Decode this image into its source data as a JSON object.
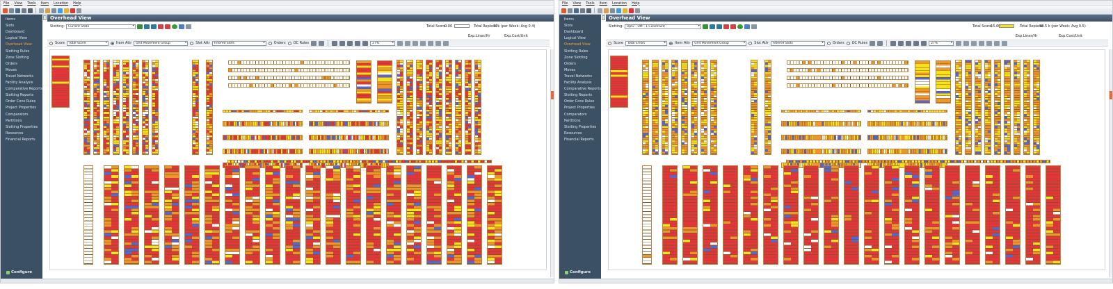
{
  "colors": {
    "sidebar_bg": "#3c5063",
    "header_bg": "#4a6076",
    "active_item": "#f2a23a",
    "slot_red": "#e8333a",
    "slot_orange": "#f0952c",
    "slot_yellow": "#f8e21c",
    "slot_blue": "#5566d6",
    "slot_outline": "#b9853e"
  },
  "menu": [
    "File",
    "View",
    "Tools",
    "Item",
    "Location",
    "Help"
  ],
  "sidebar": {
    "items": [
      "Items",
      "Slots",
      "Dashboard",
      "Logical View",
      "Overhead View",
      "Slotting Rules",
      "Zone Slotting",
      "Orders",
      "Moves",
      "Travel Networks",
      "Facility Analysis",
      "Comparative Reports",
      "Slotting Reports",
      "Order Cons Rules",
      "Project Properties",
      "Comparators",
      "Partitions",
      "Slotting Properties",
      "Resources",
      "Financial Reports"
    ],
    "active_index": 4,
    "configure_label": "Configure"
  },
  "left": {
    "view_title": "Overhead View",
    "slotting_label": "Slotting:",
    "slotting_value": "Current State",
    "total_score_label": "Total Score:",
    "total_score_value": "0.00",
    "score_color": "#ffffff",
    "total_replens_label": "Total Replens:",
    "total_replens_value": "37k (per Week: Avg 0.4)",
    "exp_lines": "Exp.Lines/Hr",
    "exp_cost": "Exp.Cost/Unit",
    "score_label": "Score",
    "score_select": "Total Score",
    "item_attr_label": "Item Attr",
    "item_attr_select": "Unit Movement Group",
    "slot_attr_label": "Slot Attr",
    "slot_attr_select": "Filtered Slots",
    "orders_label": "Orders",
    "oc_rules_label": "OC Rules",
    "zoom_value": "27%"
  },
  "right": {
    "view_title": "Overhead View",
    "slotting_label": "Slotting:",
    "slotting_value": "Opt2 - UM - 1 Constraint",
    "total_score_label": "Total Score:",
    "total_score_value": "15.60",
    "score_color": "#f8e21c",
    "total_replens_label": "Total Replens:",
    "total_replens_value": "38.5 k (per Week: Avg 0.5)",
    "exp_lines": "Exp.Lines/Hr",
    "exp_cost": "Exp.Cost/Unit",
    "score_label": "Score",
    "score_select": "Total Errors",
    "item_attr_label": "Item Attr",
    "item_attr_select": "Unit Movement Group",
    "slot_attr_label": "Slot Attr",
    "slot_attr_select": "Filtered Slots",
    "orders_label": "Orders",
    "oc_rules_label": "OC Rules",
    "zoom_value": "27%"
  }
}
